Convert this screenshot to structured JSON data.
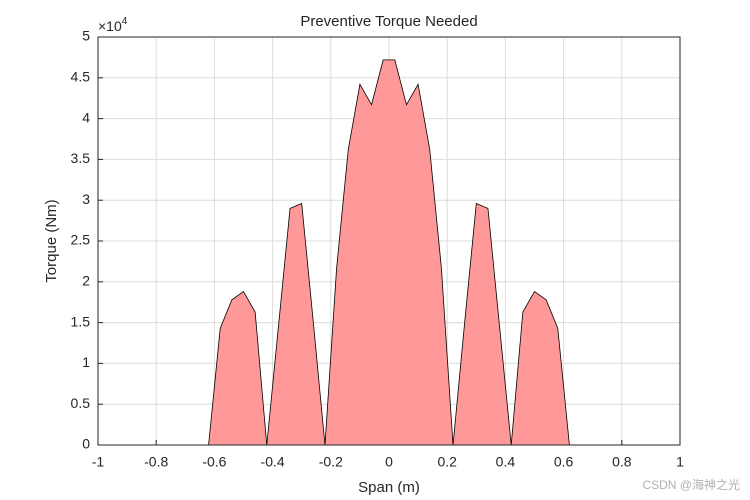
{
  "chart_data": {
    "type": "area",
    "title": "Preventive Torque Needed",
    "x_label": "Span (m)",
    "y_label": "Torque (Nm)",
    "y_multiplier": {
      "base": "×10",
      "exponent": "4"
    },
    "watermark": "CSDN @海神之光",
    "color": "#ff9999",
    "edge_color": "#000000",
    "grid": true,
    "x": [
      -0.98,
      -0.94,
      -0.9,
      -0.86,
      -0.82,
      -0.78,
      -0.74,
      -0.7,
      -0.66,
      -0.62,
      -0.58,
      -0.54,
      -0.5,
      -0.46,
      -0.42,
      -0.38,
      -0.34,
      -0.3,
      -0.26,
      -0.22,
      -0.18,
      -0.14,
      -0.1,
      -0.06,
      -0.02,
      0.02,
      0.06,
      0.1,
      0.14,
      0.18,
      0.22,
      0.26,
      0.3,
      0.34,
      0.38,
      0.42,
      0.46,
      0.5,
      0.54,
      0.58,
      0.62,
      0.66,
      0.7,
      0.74,
      0.78,
      0.82,
      0.86,
      0.9,
      0.94,
      0.98
    ],
    "values": [
      0,
      0,
      0,
      0,
      0,
      0,
      0,
      0,
      0,
      0,
      14300,
      17800,
      18800,
      16300,
      0,
      14500,
      29000,
      29600,
      15000,
      0,
      21700,
      36200,
      44200,
      41700,
      47200,
      47200,
      41700,
      44200,
      36200,
      21700,
      0,
      15000,
      29600,
      29000,
      14500,
      0,
      16300,
      18800,
      17800,
      14300,
      0,
      0,
      0,
      0,
      0,
      0,
      0,
      0,
      0,
      0
    ],
    "xlim": [
      -1,
      1
    ],
    "xticks": [
      -1,
      -0.8,
      -0.6,
      -0.4,
      -0.2,
      0,
      0.2,
      0.4,
      0.6,
      0.8,
      1
    ],
    "ylim": [
      0,
      50000
    ],
    "yticks": [
      {
        "value": 0,
        "label": "0"
      },
      {
        "value": 5000,
        "label": "0.5"
      },
      {
        "value": 10000,
        "label": "1"
      },
      {
        "value": 15000,
        "label": "1.5"
      },
      {
        "value": 20000,
        "label": "2"
      },
      {
        "value": 25000,
        "label": "2.5"
      },
      {
        "value": 30000,
        "label": "3"
      },
      {
        "value": 35000,
        "label": "3.5"
      },
      {
        "value": 40000,
        "label": "4"
      },
      {
        "value": 45000,
        "label": "4.5"
      },
      {
        "value": 50000,
        "label": "5"
      }
    ]
  }
}
